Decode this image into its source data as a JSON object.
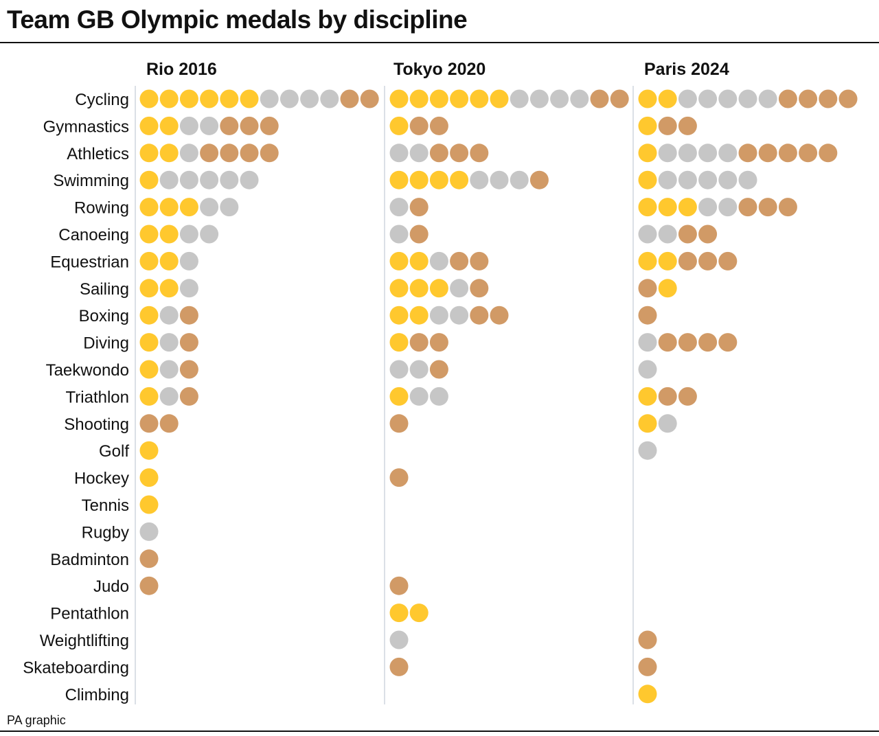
{
  "chart_data": {
    "type": "dot-matrix",
    "title": "Team GB Olympic medals by discipline",
    "source": "PA graphic",
    "colors": {
      "G": "#ffc82e",
      "S": "#c6c6c6",
      "B": "#d19a66"
    },
    "medal_key": {
      "G": "gold",
      "S": "silver",
      "B": "bronze"
    },
    "categories": [
      "Cycling",
      "Gymnastics",
      "Athletics",
      "Swimming",
      "Rowing",
      "Canoeing",
      "Equestrian",
      "Sailing",
      "Boxing",
      "Diving",
      "Taekwondo",
      "Triathlon",
      "Shooting",
      "Golf",
      "Hockey",
      "Tennis",
      "Rugby",
      "Badminton",
      "Judo",
      "Pentathlon",
      "Weightlifting",
      "Skateboarding",
      "Climbing"
    ],
    "series": [
      {
        "name": "Rio 2016",
        "values": [
          "GGGGGGSSSSBB",
          "GGSSBBB",
          "GGSBBBB",
          "GSSSSS",
          "GGGSS",
          "GGSS",
          "GGS",
          "GGS",
          "GSB",
          "GSB",
          "GSB",
          "GSB",
          "BB",
          "G",
          "G",
          "G",
          "S",
          "B",
          "B",
          "",
          "",
          "",
          ""
        ]
      },
      {
        "name": "Tokyo 2020",
        "values": [
          "GGGGGGSSSSBB",
          "GBB",
          "SSBBB",
          "GGGGSSSB",
          "SB",
          "SB",
          "GGSBB",
          "GGGSB",
          "GGSSBB",
          "GBB",
          "SSB",
          "GSS",
          "B",
          "",
          "B",
          "",
          "",
          "",
          "B",
          "GG",
          "S",
          "B",
          ""
        ]
      },
      {
        "name": "Paris 2024",
        "values": [
          "GGSSSSSBBBB",
          "GBB",
          "GSSSSBBBBB",
          "GSSSSS",
          "GGGSSBBB",
          "SSBB",
          "GGBBB",
          "BG",
          "B",
          "SBBBB",
          "S",
          "GBB",
          "GS",
          "S",
          "",
          "",
          "",
          "",
          "",
          "",
          "B",
          "B",
          "G"
        ]
      }
    ]
  }
}
